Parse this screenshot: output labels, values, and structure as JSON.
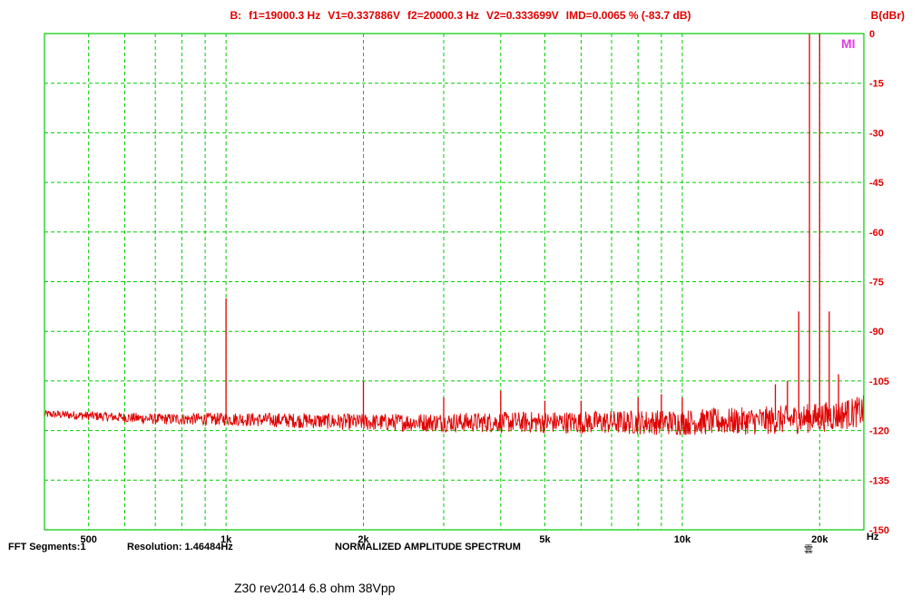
{
  "header": {
    "channel": "B:",
    "f1": "f1=19000.3 Hz",
    "v1": "V1=0.337886V",
    "f2": "f2=20000.3 Hz",
    "v2": "V2=0.333699V",
    "imd": "IMD=0.0065 % (-83.7 dB)",
    "unit": "B(dBr)"
  },
  "footer": {
    "fft_segments": "FFT Segments:1",
    "resolution": "Resolution: 1.46484Hz",
    "spectrum_title": "NORMALIZED AMPLITUDE SPECTRUM",
    "x_unit": "Hz",
    "caption": "Z30 rev2014  6.8 ohm 38Vpp",
    "logo_fragment": "MI",
    "glyph": "雲"
  },
  "colors": {
    "trace": "#e00000",
    "grid": "#00cc00",
    "axis_text": "#e00000"
  },
  "chart_data": {
    "type": "line",
    "xscale": "log",
    "xlim": [
      400,
      25000
    ],
    "ylim": [
      -150,
      0
    ],
    "x_tick_labels": [
      {
        "value": 500,
        "label": "500"
      },
      {
        "value": 1000,
        "label": "1k"
      },
      {
        "value": 2000,
        "label": "2k"
      },
      {
        "value": 5000,
        "label": "5k"
      },
      {
        "value": 10000,
        "label": "10k"
      },
      {
        "value": 20000,
        "label": "20k"
      }
    ],
    "x_grid": [
      500,
      600,
      700,
      800,
      900,
      1000,
      2000,
      3000,
      4000,
      5000,
      6000,
      7000,
      8000,
      9000,
      10000,
      20000
    ],
    "y_ticks": [
      0,
      -15,
      -30,
      -45,
      -60,
      -75,
      -90,
      -105,
      -120,
      -135,
      -150
    ],
    "grid": true,
    "noise_floor": [
      [
        400,
        -115
      ],
      [
        500,
        -115.5
      ],
      [
        700,
        -116.5
      ],
      [
        1000,
        -116.5
      ],
      [
        1500,
        -117
      ],
      [
        2000,
        -117.5
      ],
      [
        3000,
        -117.5
      ],
      [
        5000,
        -117.5
      ],
      [
        7000,
        -117.5
      ],
      [
        10000,
        -117.5
      ],
      [
        15000,
        -117
      ],
      [
        18000,
        -116.5
      ],
      [
        20000,
        -116
      ],
      [
        23000,
        -115
      ],
      [
        25000,
        -114
      ]
    ],
    "peaks": [
      {
        "x": 1000,
        "y": -80
      },
      {
        "x": 2000,
        "y": -105
      },
      {
        "x": 3000,
        "y": -110
      },
      {
        "x": 4000,
        "y": -108
      },
      {
        "x": 5000,
        "y": -111
      },
      {
        "x": 6000,
        "y": -111
      },
      {
        "x": 8000,
        "y": -110
      },
      {
        "x": 9000,
        "y": -109
      },
      {
        "x": 10000,
        "y": -110
      },
      {
        "x": 16000,
        "y": -106
      },
      {
        "x": 17000,
        "y": -105
      },
      {
        "x": 18000,
        "y": -84
      },
      {
        "x": 19000.3,
        "y": 0
      },
      {
        "x": 20000.3,
        "y": 0
      },
      {
        "x": 21000,
        "y": -84
      },
      {
        "x": 22000,
        "y": -103
      },
      {
        "x": 23000,
        "y": -111
      }
    ]
  }
}
